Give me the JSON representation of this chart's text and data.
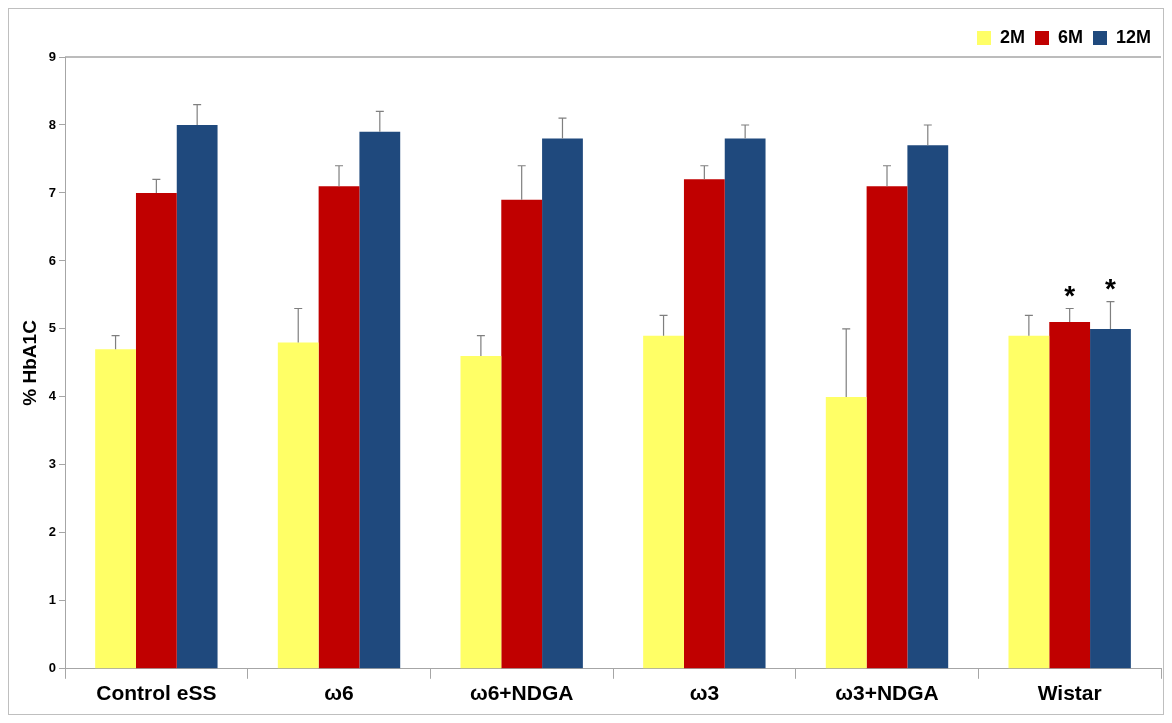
{
  "chart_data": {
    "type": "bar",
    "ylabel": "% HbA1C",
    "categories": [
      "Control eSS",
      "ω6",
      "ω6+NDGA",
      "ω3",
      "ω3+NDGA",
      "Wistar"
    ],
    "ylim": [
      0,
      9
    ],
    "yticks": [
      0,
      1,
      2,
      3,
      4,
      5,
      6,
      7,
      8,
      9
    ],
    "grid": false,
    "legend": "top right",
    "series": [
      {
        "name": "2M",
        "color": "#ffff66",
        "values": [
          4.7,
          4.8,
          4.6,
          4.9,
          4.0,
          4.9
        ],
        "errors": [
          [
            4.7,
            4.9
          ],
          [
            4.8,
            5.3
          ],
          [
            4.6,
            4.9
          ],
          [
            4.9,
            5.2
          ],
          [
            4.0,
            5.0
          ],
          [
            4.9,
            5.2
          ]
        ]
      },
      {
        "name": "6M",
        "color": "#c00000",
        "values": [
          7.0,
          7.1,
          6.9,
          7.2,
          7.1,
          5.1
        ],
        "errors": [
          [
            7.0,
            7.2
          ],
          [
            7.1,
            7.4
          ],
          [
            6.9,
            7.4
          ],
          [
            7.2,
            7.4
          ],
          [
            7.1,
            7.4
          ],
          [
            5.1,
            5.3
          ]
        ],
        "value_labels": [
          null,
          null,
          null,
          null,
          null,
          "*"
        ]
      },
      {
        "name": "12M",
        "color": "#1f497d",
        "values": [
          8.0,
          7.9,
          7.8,
          7.8,
          7.7,
          5.0
        ],
        "errors": [
          [
            8.0,
            8.3
          ],
          [
            7.9,
            8.2
          ],
          [
            7.8,
            8.1
          ],
          [
            7.8,
            8.0
          ],
          [
            7.7,
            8.0
          ],
          [
            5.0,
            5.4
          ]
        ],
        "value_labels": [
          null,
          null,
          null,
          null,
          null,
          "*"
        ]
      }
    ]
  }
}
